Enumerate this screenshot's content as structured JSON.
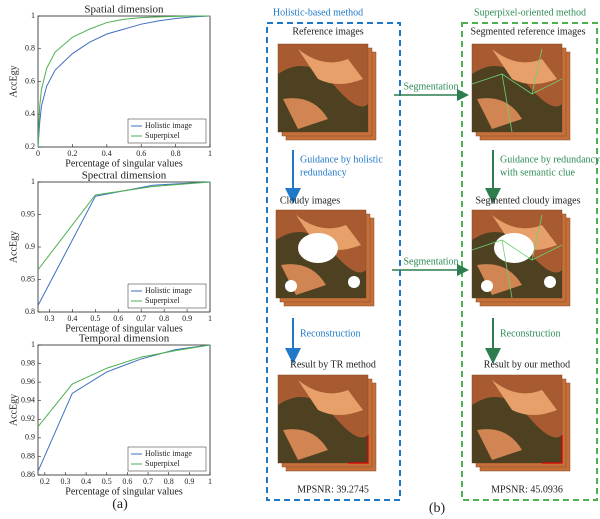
{
  "chart_data": [
    {
      "type": "line",
      "title": "Spatial dimension",
      "x_label": "Percentage of singular values",
      "y_label": "AccEgy",
      "x": [
        0,
        0.01,
        0.02,
        0.05,
        0.1,
        0.2,
        0.3,
        0.4,
        0.5,
        0.6,
        0.7,
        0.8,
        0.9,
        1
      ],
      "series": [
        {
          "name": "Holistic image",
          "color": "#3f6fc0",
          "values": [
            0.2,
            0.35,
            0.45,
            0.57,
            0.67,
            0.77,
            0.84,
            0.89,
            0.92,
            0.95,
            0.97,
            0.985,
            0.995,
            1
          ]
        },
        {
          "name": "Superpixel",
          "color": "#4caf50",
          "values": [
            0.2,
            0.45,
            0.55,
            0.68,
            0.78,
            0.87,
            0.92,
            0.96,
            0.98,
            0.99,
            0.995,
            0.998,
            1,
            1
          ]
        }
      ],
      "xlim": [
        0,
        1
      ],
      "xticks": [
        0,
        0.2,
        0.4,
        0.6,
        0.8,
        1
      ],
      "ylim": [
        0.2,
        1
      ],
      "yticks": [
        0.2,
        0.4,
        0.6,
        0.8,
        1
      ],
      "legend": "lower right"
    },
    {
      "type": "line",
      "title": "Spectral dimension",
      "x_label": "Percentage of singular values",
      "y_label": "AccEgy",
      "x": [
        0.25,
        0.5,
        0.75,
        1
      ],
      "series": [
        {
          "name": "Holistic image",
          "color": "#3f6fc0",
          "values": [
            0.81,
            0.978,
            0.995,
            1
          ]
        },
        {
          "name": "Superpixel",
          "color": "#4caf50",
          "values": [
            0.865,
            0.98,
            0.993,
            1
          ]
        }
      ],
      "xlim": [
        0.25,
        1
      ],
      "xticks": [
        0.3,
        0.4,
        0.5,
        0.6,
        0.7,
        0.8,
        0.9,
        1
      ],
      "ylim": [
        0.8,
        1
      ],
      "yticks": [
        0.8,
        0.85,
        0.9,
        0.95,
        1
      ],
      "legend": "lower right"
    },
    {
      "type": "line",
      "title": "Temporal dimension",
      "x_label": "Percentage of singular values",
      "y_label": "AccEgy",
      "x": [
        0.167,
        0.333,
        0.5,
        0.667,
        0.833,
        1
      ],
      "series": [
        {
          "name": "Holistic image",
          "color": "#3f6fc0",
          "values": [
            0.864,
            0.948,
            0.971,
            0.985,
            0.995,
            1
          ]
        },
        {
          "name": "Superpixel",
          "color": "#4caf50",
          "values": [
            0.912,
            0.958,
            0.975,
            0.987,
            0.994,
            1
          ]
        }
      ],
      "xlim": [
        0.167,
        1
      ],
      "xticks": [
        0.2,
        0.3,
        0.4,
        0.5,
        0.6,
        0.7,
        0.8,
        0.9,
        1
      ],
      "ylim": [
        0.86,
        1
      ],
      "yticks": [
        0.86,
        0.88,
        0.9,
        0.92,
        0.94,
        0.96,
        0.98,
        1
      ],
      "legend": "lower right"
    }
  ],
  "panel_labels": [
    "(a)",
    "(b)"
  ],
  "diagram": {
    "left_title": "Holistic-based method",
    "right_title": "Superpixel-oriented method",
    "reference": "Reference images",
    "segmented_reference": "Segmented reference images",
    "segmentation": [
      "Segmentation",
      "Segmentation"
    ],
    "guidance_holistic": [
      "Guidance by holistic",
      "redundancy"
    ],
    "guidance_semantic": [
      "Guidance by redundancy",
      "with semantic clue"
    ],
    "cloudy": "Cloudy images",
    "segmented_cloudy": "Segmented cloudy images",
    "reconstruction": [
      "Reconstruction",
      "Reconstruction"
    ],
    "result_tr": "Result by TR method",
    "result_ours": "Result by our method",
    "mpsnr_tr": "MPSNR: 39.2745",
    "mpsnr_ours": "MPSNR: 45.0936"
  }
}
